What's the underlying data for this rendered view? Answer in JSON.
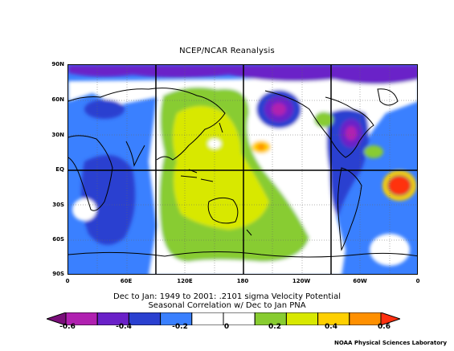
{
  "title": "NCEP/NCAR Reanalysis",
  "map": {
    "y_ticks": [
      "90N",
      "60N",
      "30N",
      "EQ",
      "30S",
      "60S",
      "90S"
    ],
    "x_ticks": [
      "0",
      "60E",
      "120E",
      "180",
      "120W",
      "60W",
      "0"
    ]
  },
  "caption": {
    "line1": "Dec to Jan: 1949 to 2001: .2101 sigma Velocity Potential",
    "line2": "Seasonal Correlation w/ Dec to Jan PNA"
  },
  "colorbar": {
    "colors": [
      "#7a0e7a",
      "#b020b0",
      "#6a20c8",
      "#2a40d0",
      "#3a80ff",
      "#ffffff",
      "#ffffff",
      "#88cc30",
      "#d8e800",
      "#ffd000",
      "#ff9000",
      "#ff3010"
    ],
    "tick_labels": [
      "-0.6",
      "-0.4",
      "-0.2",
      "0",
      "0.2",
      "0.4",
      "0.6"
    ]
  },
  "credit": "NOAA Physical Sciences Laboratory"
}
